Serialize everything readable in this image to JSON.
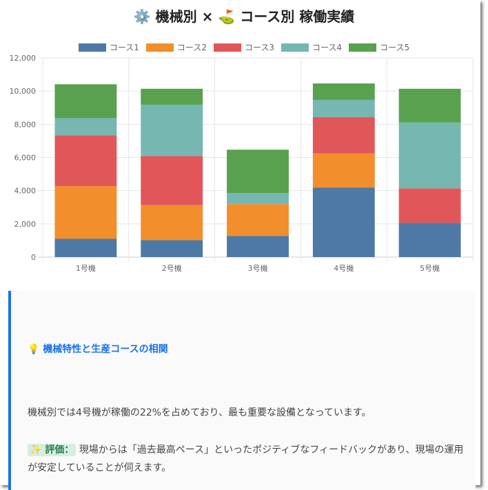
{
  "title": {
    "icon_left": "⚙️",
    "part1": "機械別 ×",
    "icon_right": "⛳",
    "part2": "コース別 稼働実績"
  },
  "chart_data": {
    "type": "bar",
    "stacked": true,
    "categories": [
      "1号機",
      "2号機",
      "3号機",
      "4号機",
      "5号機"
    ],
    "series": [
      {
        "name": "コース1",
        "color": "#4e79a7",
        "values": [
          1100,
          1020,
          1270,
          4190,
          2060
        ]
      },
      {
        "name": "コース2",
        "color": "#f28e2b",
        "values": [
          3170,
          2110,
          1920,
          2050,
          0
        ]
      },
      {
        "name": "コース3",
        "color": "#e15759",
        "values": [
          3070,
          2960,
          0,
          2200,
          2080
        ]
      },
      {
        "name": "コース4",
        "color": "#76b7b2",
        "values": [
          1030,
          3090,
          670,
          1030,
          3970
        ]
      },
      {
        "name": "コース5",
        "color": "#59a14f",
        "values": [
          2040,
          960,
          2610,
          990,
          2030
        ]
      }
    ],
    "ylim": [
      0,
      12000
    ],
    "yticks": [
      "0",
      "2,000",
      "4,000",
      "6,000",
      "8,000",
      "10,000",
      "12,000"
    ],
    "grid": true,
    "legend": "top"
  },
  "insight": {
    "icon": "💡",
    "heading": "機械特性と生産コースの相関",
    "paragraph1": "機械別では4号機が稼働の22%を占めており、最も重要な設備となっています。",
    "badge_icon": "✨",
    "badge_label": "評価：",
    "paragraph2": "現場からは「過去最高ペース」といったポジティブなフィードバックがあり、現場の運用が安定していることが伺えます。",
    "accent_color": "#1a73e8"
  }
}
